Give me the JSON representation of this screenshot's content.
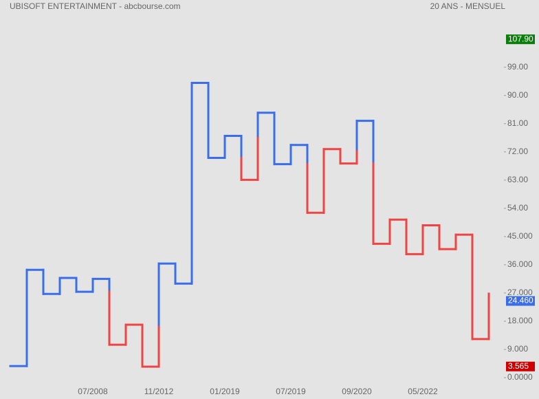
{
  "chart_data": {
    "type": "kagi",
    "title": "UBISOFT ENTERTAINMENT - abcbourse.com",
    "subtitle": "20 ANS - MENSUEL",
    "categories": [
      null,
      null,
      null,
      null,
      null,
      "07/2008",
      null,
      null,
      null,
      "11/2012",
      null,
      null,
      null,
      "01/2019",
      null,
      null,
      null,
      "07/2019",
      null,
      null,
      null,
      "09/2020",
      null,
      null,
      null,
      "05/2022",
      null,
      null,
      null,
      null
    ],
    "values": [
      3.7,
      34.4,
      26.7,
      31.8,
      27.4,
      31.5,
      10.5,
      16.9,
      3.5,
      36.4,
      30.0,
      94.0,
      70.1,
      77.1,
      63.1,
      84.5,
      68.1,
      74.2,
      52.6,
      72.9,
      68.3,
      81.9,
      42.7,
      50.4,
      39.4,
      48.6,
      41.0,
      45.6,
      12.3,
      26.8
    ],
    "up_color": "#3a6ee8",
    "down_color": "#ee4444",
    "ylim": [
      0,
      120
    ],
    "yticks": [
      {
        "value": 0,
        "label": "0.0000"
      },
      {
        "value": 9,
        "label": "9.000"
      },
      {
        "value": 18,
        "label": "18.000"
      },
      {
        "value": 27,
        "label": "27.000"
      },
      {
        "value": 36,
        "label": "36.000"
      },
      {
        "value": 45,
        "label": "45.000"
      },
      {
        "value": 54,
        "label": "54.00"
      },
      {
        "value": 63,
        "label": "63.00"
      },
      {
        "value": 72,
        "label": "72.00"
      },
      {
        "value": 81,
        "label": "81.00"
      },
      {
        "value": 90,
        "label": "90.00"
      },
      {
        "value": 99,
        "label": "99.00"
      }
    ],
    "markers": [
      {
        "value": 107.9,
        "label": "107.90",
        "color": "#0a7d0a"
      },
      {
        "value": 24.46,
        "label": "24.460",
        "color": "#3a6ee8"
      },
      {
        "value": 3.565,
        "label": "3.565",
        "color": "#cc0000"
      }
    ],
    "grid": false
  }
}
